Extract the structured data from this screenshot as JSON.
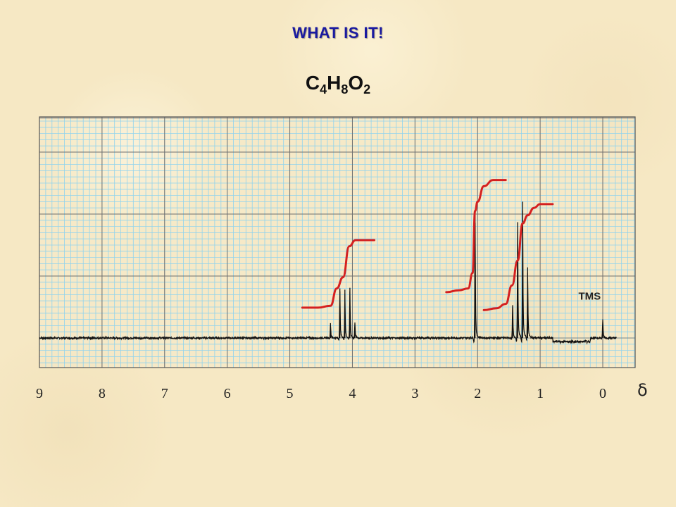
{
  "title": "WHAT IS IT!",
  "formula": {
    "parts": [
      "C",
      "4",
      "H",
      "8",
      "O",
      "2"
    ]
  },
  "chart_data": {
    "type": "line",
    "title": "WHAT IS IT!",
    "xlabel": "δ",
    "ylabel": "",
    "xlim": [
      9.1,
      -0.5
    ],
    "x_reversed": true,
    "x_ticks": [
      9,
      8,
      7,
      6,
      5,
      4,
      3,
      2,
      1,
      0
    ],
    "grid": true,
    "series": [
      {
        "kind": "spectrum",
        "peaks": [
          {
            "x": 4.35,
            "height": 0.24
          },
          {
            "x": 4.2,
            "height": 0.8
          },
          {
            "x": 4.12,
            "height": 0.78
          },
          {
            "x": 4.04,
            "height": 0.81
          },
          {
            "x": 3.96,
            "height": 0.25
          },
          {
            "x": 2.04,
            "height": 2.02
          },
          {
            "x": 1.44,
            "height": 0.53
          },
          {
            "x": 1.36,
            "height": 1.87
          },
          {
            "x": 1.28,
            "height": 2.2
          },
          {
            "x": 1.2,
            "height": 1.14
          },
          {
            "x": 0.0,
            "height": 0.3
          }
        ]
      },
      {
        "kind": "integral",
        "x": [
          4.8,
          4.55,
          4.35,
          4.25,
          4.15,
          4.05,
          3.95,
          3.8,
          3.65
        ],
        "y": [
          0.49,
          0.49,
          0.52,
          0.8,
          0.98,
          1.48,
          1.58,
          1.58,
          1.58
        ]
      },
      {
        "kind": "integral",
        "x": [
          2.5,
          2.3,
          2.15,
          2.08,
          2.04,
          2.0,
          1.9,
          1.75,
          1.55
        ],
        "y": [
          0.74,
          0.77,
          0.8,
          1.05,
          2.05,
          2.2,
          2.45,
          2.55,
          2.55
        ]
      },
      {
        "kind": "integral",
        "x": [
          1.9,
          1.7,
          1.55,
          1.45,
          1.36,
          1.28,
          1.2,
          1.1,
          1.0,
          0.8
        ],
        "y": [
          0.45,
          0.48,
          0.55,
          0.85,
          1.25,
          1.85,
          1.98,
          2.1,
          2.16,
          2.16
        ]
      }
    ],
    "annotations": [
      {
        "text": "TMS",
        "x": 0.3,
        "y": 0.62
      }
    ]
  }
}
